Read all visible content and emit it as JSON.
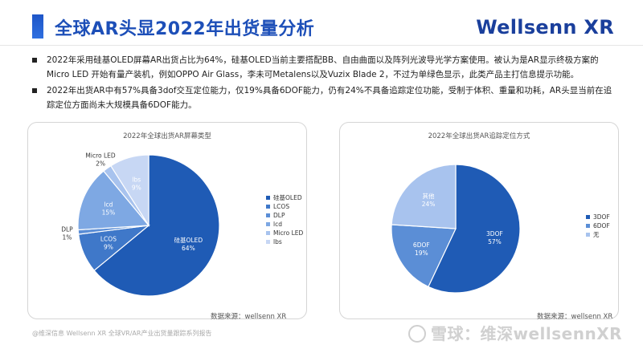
{
  "header": {
    "title": "全球AR头显2022年出货量分析",
    "brand": "Wellsenn XR"
  },
  "bullets": [
    "2022年采用硅基OLED屏幕AR出货占比为64%，硅基OLED当前主要搭配BB、自由曲面以及阵列光波导光学方案使用。被认为是AR显示终极方案的Micro LED 开始有量产装机，例如OPPO Air Glass，李未可Metalens以及Vuzix Blade 2，不过为单绿色显示，此类产品主打信息提示功能。",
    "2022年出货AR中有57%具备3dof交互定位能力，仅19%具备6DOF能力，仍有24%不具备追踪定位功能，受制于体积、重量和功耗，AR头显当前在追踪定位方面尚未大规模具备6DOF能力。"
  ],
  "colors": {
    "accent": "#1d4fb8"
  },
  "chart_data": [
    {
      "type": "pie",
      "title": "2022年全球出货AR屏幕类型",
      "source": "数据来源：wellsenn XR",
      "legend_position": "right",
      "slices": [
        {
          "name": "硅基OLED",
          "label": "硅基OLED",
          "value": 64,
          "percent_label": "64%",
          "color": "#1f5bb5"
        },
        {
          "name": "LCOS",
          "label": "LCOS",
          "value": 9,
          "percent_label": "9%",
          "color": "#3f78c9"
        },
        {
          "name": "DLP",
          "label": "DLP",
          "value": 1,
          "percent_label": "1%",
          "color": "#5b8ed6"
        },
        {
          "name": "lcd",
          "label": "lcd",
          "value": 15,
          "percent_label": "15%",
          "color": "#7ea8e3"
        },
        {
          "name": "Micro LED",
          "label": "Micro LED",
          "value": 2,
          "percent_label": "2%",
          "color": "#a8c3ee"
        },
        {
          "name": "lbs",
          "label": "lbs",
          "value": 9,
          "percent_label": "9%",
          "color": "#c7d7f4"
        }
      ]
    },
    {
      "type": "pie",
      "title": "2022年全球出货AR追踪定位方式",
      "source": "数据来源：wellsenn XR",
      "legend_position": "right",
      "slices": [
        {
          "name": "3DOF",
          "label": "3DOF",
          "value": 57,
          "percent_label": "57%",
          "color": "#1f5bb5"
        },
        {
          "name": "6DOF",
          "label": "6DOF",
          "value": 19,
          "percent_label": "19%",
          "color": "#5b8ed6"
        },
        {
          "name": "无",
          "label": "其他",
          "value": 24,
          "percent_label": "24%",
          "color": "#a8c3ee"
        }
      ]
    }
  ],
  "footer": {
    "left": "@维深信息 Wellsenn XR 全球VR/AR产业出货量跟踪系列报告",
    "right": "雪球：维深wellsennXR"
  }
}
